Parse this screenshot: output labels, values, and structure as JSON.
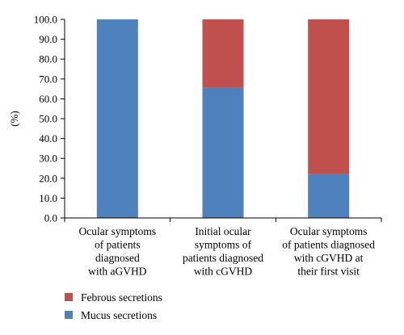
{
  "chart_data": {
    "type": "bar",
    "stacked": true,
    "categories": [
      [
        "Ocular symptoms",
        "of patients",
        "diagnosed",
        "with aGVHD"
      ],
      [
        "Initial ocular",
        "symptoms of",
        "patients diagnosed",
        "with cGVHD"
      ],
      [
        "Ocular symptoms",
        "of patients diagnosed",
        "with cGVHD at",
        "their first visit"
      ]
    ],
    "series": [
      {
        "name": "Mucus secretions",
        "values": [
          100.0,
          65.5,
          22.0
        ],
        "color": "#4f81bd"
      },
      {
        "name": "Febrous secretions",
        "values": [
          0.0,
          34.5,
          78.0
        ],
        "color": "#c0504d"
      }
    ],
    "ylabel": "(%)",
    "ylim": [
      0,
      100
    ],
    "yticks": [
      "0.0",
      "10.0",
      "20.0",
      "30.0",
      "40.0",
      "50.0",
      "60.0",
      "70.0",
      "80.0",
      "90.0",
      "100.0"
    ],
    "grid": false,
    "legend_position": "bottom-left",
    "legend_order": [
      "Febrous secretions",
      "Mucus secretions"
    ]
  }
}
